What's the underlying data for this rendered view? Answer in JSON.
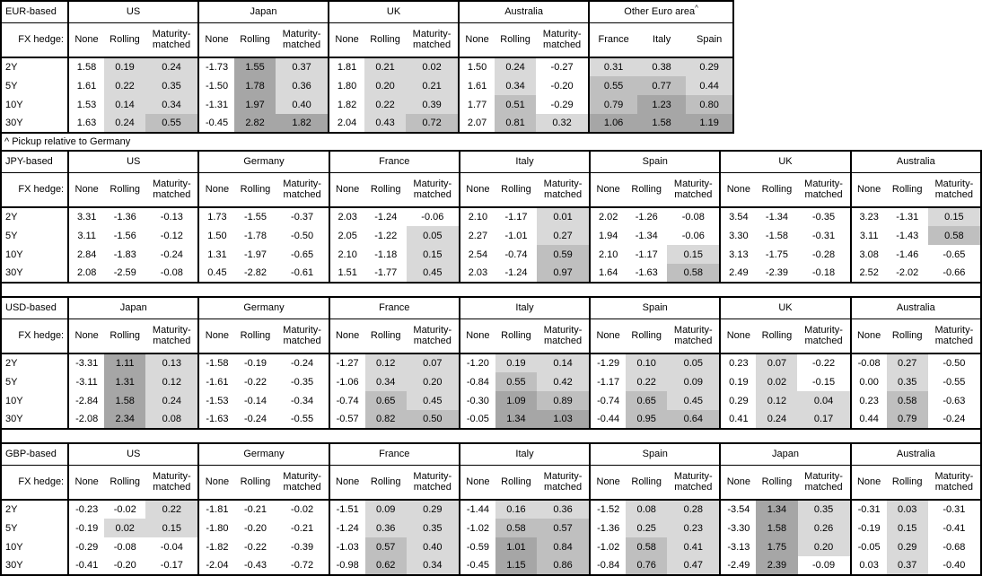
{
  "footnote": "^ Pickup relative to Germany",
  "fx_hedge_label": "FX hedge:",
  "row_labels": [
    "2Y",
    "5Y",
    "10Y",
    "30Y"
  ],
  "hedge_columns": [
    "None",
    "Rolling",
    "Maturity-matched"
  ],
  "colors": {
    "border": "#000000",
    "shade_light": "#d9d9d9",
    "shade_medium": "#bfbfbf",
    "shade_dark": "#a6a6a6"
  },
  "shading_rule": "Hedged/pickup cells: value > 0 light, >= 0.5 medium, >= 1.0 dark; None columns and non-positive values unshaded",
  "chart_data": {
    "type": "table",
    "sections": [
      {
        "id": "eur",
        "label": "EUR-based",
        "groups": [
          {
            "name": "US",
            "columns": [
              "None",
              "Rolling",
              "Maturity-matched"
            ],
            "rows": [
              [
                1.58,
                0.19,
                0.24
              ],
              [
                1.61,
                0.22,
                0.35
              ],
              [
                1.53,
                0.14,
                0.34
              ],
              [
                1.63,
                0.24,
                0.55
              ]
            ]
          },
          {
            "name": "Japan",
            "columns": [
              "None",
              "Rolling",
              "Maturity-matched"
            ],
            "rows": [
              [
                -1.73,
                1.55,
                0.37
              ],
              [
                -1.5,
                1.78,
                0.36
              ],
              [
                -1.31,
                1.97,
                0.4
              ],
              [
                -0.45,
                2.82,
                1.82
              ]
            ]
          },
          {
            "name": "UK",
            "columns": [
              "None",
              "Rolling",
              "Maturity-matched"
            ],
            "rows": [
              [
                1.81,
                0.21,
                0.02
              ],
              [
                1.8,
                0.2,
                0.21
              ],
              [
                1.82,
                0.22,
                0.39
              ],
              [
                2.04,
                0.43,
                0.72
              ]
            ]
          },
          {
            "name": "Australia",
            "columns": [
              "None",
              "Rolling",
              "Maturity-matched"
            ],
            "rows": [
              [
                1.5,
                0.24,
                -0.27
              ],
              [
                1.61,
                0.34,
                -0.2
              ],
              [
                1.77,
                0.51,
                -0.29
              ],
              [
                2.07,
                0.81,
                0.32
              ]
            ]
          },
          {
            "name": "Other Euro area",
            "sup": "^",
            "shade_all": true,
            "columns": [
              "France",
              "Italy",
              "Spain"
            ],
            "rows": [
              [
                0.31,
                0.38,
                0.29
              ],
              [
                0.55,
                0.77,
                0.44
              ],
              [
                0.79,
                1.23,
                0.8
              ],
              [
                1.06,
                1.58,
                1.19
              ]
            ]
          }
        ]
      },
      {
        "id": "jpy",
        "label": "JPY-based",
        "groups": [
          {
            "name": "US",
            "columns": [
              "None",
              "Rolling",
              "Maturity-matched"
            ],
            "rows": [
              [
                3.31,
                -1.36,
                -0.13
              ],
              [
                3.11,
                -1.56,
                -0.12
              ],
              [
                2.84,
                -1.83,
                -0.24
              ],
              [
                2.08,
                -2.59,
                -0.08
              ]
            ]
          },
          {
            "name": "Germany",
            "columns": [
              "None",
              "Rolling",
              "Maturity-matched"
            ],
            "rows": [
              [
                1.73,
                -1.55,
                -0.37
              ],
              [
                1.5,
                -1.78,
                -0.5
              ],
              [
                1.31,
                -1.97,
                -0.65
              ],
              [
                0.45,
                -2.82,
                -0.61
              ]
            ]
          },
          {
            "name": "France",
            "columns": [
              "None",
              "Rolling",
              "Maturity-matched"
            ],
            "rows": [
              [
                2.03,
                -1.24,
                -0.06
              ],
              [
                2.05,
                -1.22,
                0.05
              ],
              [
                2.1,
                -1.18,
                0.15
              ],
              [
                1.51,
                -1.77,
                0.45
              ]
            ]
          },
          {
            "name": "Italy",
            "columns": [
              "None",
              "Rolling",
              "Maturity-matched"
            ],
            "rows": [
              [
                2.1,
                -1.17,
                0.01
              ],
              [
                2.27,
                -1.01,
                0.27
              ],
              [
                2.54,
                -0.74,
                0.59
              ],
              [
                2.03,
                -1.24,
                0.97
              ]
            ]
          },
          {
            "name": "Spain",
            "columns": [
              "None",
              "Rolling",
              "Maturity-matched"
            ],
            "rows": [
              [
                2.02,
                -1.26,
                -0.08
              ],
              [
                1.94,
                -1.34,
                -0.06
              ],
              [
                2.1,
                -1.17,
                0.15
              ],
              [
                1.64,
                -1.63,
                0.58
              ]
            ]
          },
          {
            "name": "UK",
            "columns": [
              "None",
              "Rolling",
              "Maturity-matched"
            ],
            "rows": [
              [
                3.54,
                -1.34,
                -0.35
              ],
              [
                3.3,
                -1.58,
                -0.31
              ],
              [
                3.13,
                -1.75,
                -0.28
              ],
              [
                2.49,
                -2.39,
                -0.18
              ]
            ]
          },
          {
            "name": "Australia",
            "columns": [
              "None",
              "Rolling",
              "Maturity-matched"
            ],
            "rows": [
              [
                3.23,
                -1.31,
                0.15
              ],
              [
                3.11,
                -1.43,
                0.58
              ],
              [
                3.08,
                -1.46,
                -0.65
              ],
              [
                2.52,
                -2.02,
                -0.66
              ]
            ]
          }
        ]
      },
      {
        "id": "usd",
        "label": "USD-based",
        "groups": [
          {
            "name": "Japan",
            "columns": [
              "None",
              "Rolling",
              "Maturity-matched"
            ],
            "rows": [
              [
                -3.31,
                1.11,
                0.13
              ],
              [
                -3.11,
                1.31,
                0.12
              ],
              [
                -2.84,
                1.58,
                0.24
              ],
              [
                -2.08,
                2.34,
                0.08
              ]
            ]
          },
          {
            "name": "Germany",
            "columns": [
              "None",
              "Rolling",
              "Maturity-matched"
            ],
            "rows": [
              [
                -1.58,
                -0.19,
                -0.24
              ],
              [
                -1.61,
                -0.22,
                -0.35
              ],
              [
                -1.53,
                -0.14,
                -0.34
              ],
              [
                -1.63,
                -0.24,
                -0.55
              ]
            ]
          },
          {
            "name": "France",
            "columns": [
              "None",
              "Rolling",
              "Maturity-matched"
            ],
            "rows": [
              [
                -1.27,
                0.12,
                0.07
              ],
              [
                -1.06,
                0.34,
                0.2
              ],
              [
                -0.74,
                0.65,
                0.45
              ],
              [
                -0.57,
                0.82,
                0.5
              ]
            ]
          },
          {
            "name": "Italy",
            "columns": [
              "None",
              "Rolling",
              "Maturity-matched"
            ],
            "rows": [
              [
                -1.2,
                0.19,
                0.14
              ],
              [
                -0.84,
                0.55,
                0.42
              ],
              [
                -0.3,
                1.09,
                0.89
              ],
              [
                -0.05,
                1.34,
                1.03
              ]
            ]
          },
          {
            "name": "Spain",
            "columns": [
              "None",
              "Rolling",
              "Maturity-matched"
            ],
            "rows": [
              [
                -1.29,
                0.1,
                0.05
              ],
              [
                -1.17,
                0.22,
                0.09
              ],
              [
                -0.74,
                0.65,
                0.45
              ],
              [
                -0.44,
                0.95,
                0.64
              ]
            ]
          },
          {
            "name": "UK",
            "columns": [
              "None",
              "Rolling",
              "Maturity-matched"
            ],
            "rows": [
              [
                0.23,
                0.07,
                -0.22
              ],
              [
                0.19,
                0.02,
                -0.15
              ],
              [
                0.29,
                0.12,
                0.04
              ],
              [
                0.41,
                0.24,
                0.17
              ]
            ]
          },
          {
            "name": "Australia",
            "columns": [
              "None",
              "Rolling",
              "Maturity-matched"
            ],
            "rows": [
              [
                -0.08,
                0.27,
                -0.5
              ],
              [
                0.0,
                0.35,
                -0.55
              ],
              [
                0.23,
                0.58,
                -0.63
              ],
              [
                0.44,
                0.79,
                -0.24
              ]
            ]
          }
        ]
      },
      {
        "id": "gbp",
        "label": "GBP-based",
        "groups": [
          {
            "name": "US",
            "columns": [
              "None",
              "Rolling",
              "Maturity-matched"
            ],
            "rows": [
              [
                -0.23,
                -0.02,
                0.22
              ],
              [
                -0.19,
                0.02,
                0.15
              ],
              [
                -0.29,
                -0.08,
                -0.04
              ],
              [
                -0.41,
                -0.2,
                -0.17
              ]
            ]
          },
          {
            "name": "Germany",
            "columns": [
              "None",
              "Rolling",
              "Maturity-matched"
            ],
            "rows": [
              [
                -1.81,
                -0.21,
                -0.02
              ],
              [
                -1.8,
                -0.2,
                -0.21
              ],
              [
                -1.82,
                -0.22,
                -0.39
              ],
              [
                -2.04,
                -0.43,
                -0.72
              ]
            ]
          },
          {
            "name": "France",
            "columns": [
              "None",
              "Rolling",
              "Maturity-matched"
            ],
            "rows": [
              [
                -1.51,
                0.09,
                0.29
              ],
              [
                -1.24,
                0.36,
                0.35
              ],
              [
                -1.03,
                0.57,
                0.4
              ],
              [
                -0.98,
                0.62,
                0.34
              ]
            ]
          },
          {
            "name": "Italy",
            "columns": [
              "None",
              "Rolling",
              "Maturity-matched"
            ],
            "rows": [
              [
                -1.44,
                0.16,
                0.36
              ],
              [
                -1.02,
                0.58,
                0.57
              ],
              [
                -0.59,
                1.01,
                0.84
              ],
              [
                -0.45,
                1.15,
                0.86
              ]
            ]
          },
          {
            "name": "Spain",
            "columns": [
              "None",
              "Rolling",
              "Maturity-matched"
            ],
            "rows": [
              [
                -1.52,
                0.08,
                0.28
              ],
              [
                -1.36,
                0.25,
                0.23
              ],
              [
                -1.02,
                0.58,
                0.41
              ],
              [
                -0.84,
                0.76,
                0.47
              ]
            ]
          },
          {
            "name": "Japan",
            "columns": [
              "None",
              "Rolling",
              "Maturity-matched"
            ],
            "rows": [
              [
                -3.54,
                1.34,
                0.35
              ],
              [
                -3.3,
                1.58,
                0.26
              ],
              [
                -3.13,
                1.75,
                0.2
              ],
              [
                -2.49,
                2.39,
                -0.09
              ]
            ]
          },
          {
            "name": "Australia",
            "columns": [
              "None",
              "Rolling",
              "Maturity-matched"
            ],
            "rows": [
              [
                -0.31,
                0.03,
                -0.31
              ],
              [
                -0.19,
                0.15,
                -0.41
              ],
              [
                -0.05,
                0.29,
                -0.68
              ],
              [
                0.03,
                0.37,
                -0.4
              ]
            ]
          }
        ]
      }
    ]
  }
}
